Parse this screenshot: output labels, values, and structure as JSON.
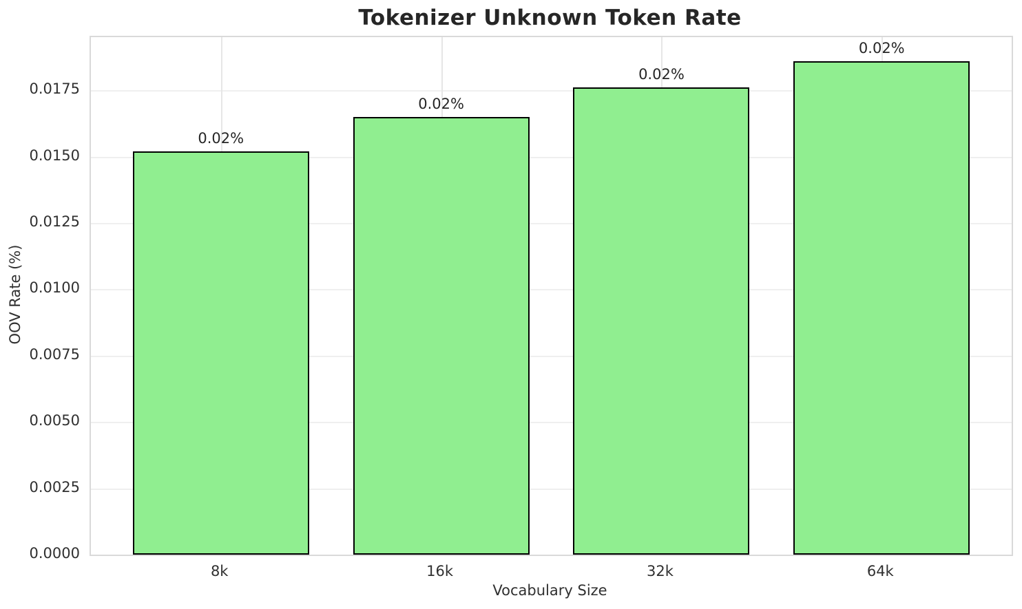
{
  "figure": {
    "background": "#ffffff"
  },
  "chart_data": {
    "type": "bar",
    "title": "Tokenizer Unknown Token Rate",
    "xlabel": "Vocabulary Size",
    "ylabel": "OOV Rate (%)",
    "categories": [
      "8k",
      "16k",
      "32k",
      "64k"
    ],
    "values": [
      0.0152,
      0.0165,
      0.0176,
      0.0186
    ],
    "bar_labels": [
      "0.02%",
      "0.02%",
      "0.02%",
      "0.02%"
    ],
    "ylim": [
      0,
      0.0195
    ],
    "yticks": [
      0.0,
      0.0025,
      0.005,
      0.0075,
      0.01,
      0.0125,
      0.015,
      0.0175
    ],
    "ytick_labels": [
      "0.0000",
      "0.0025",
      "0.0050",
      "0.0075",
      "0.0100",
      "0.0125",
      "0.0150",
      "0.0175"
    ],
    "grid": true,
    "legend_position": "none",
    "bar_width_fraction": 0.8,
    "colors": {
      "bar_fill": "#90EE90",
      "bar_edge": "#000000",
      "grid": "#ececec",
      "spine": "#d9d9d9",
      "text": "#262626"
    }
  }
}
